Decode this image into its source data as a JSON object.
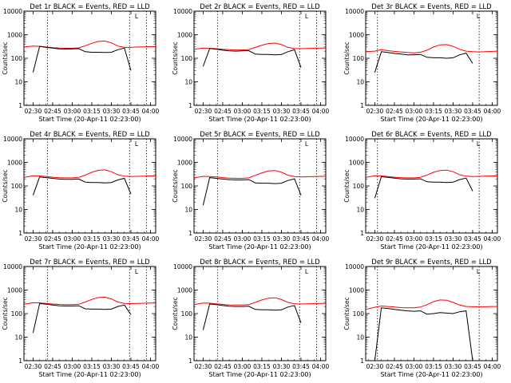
{
  "figure": {
    "ylabel": "Counts/sec",
    "xlabel": "Start Time (20-Apr-11 02:23:00)",
    "xticks": [
      "02:30",
      "02:45",
      "03:00",
      "03:15",
      "03:30",
      "03:45",
      "04:00"
    ],
    "yticks": [
      "1",
      "10",
      "100",
      "1000",
      "10000"
    ],
    "marker": "L",
    "colors": {
      "events": "#000000",
      "lld": "#ff0000",
      "axes": "#000000"
    }
  },
  "chart_data": [
    {
      "type": "line",
      "title": "Det 1r BLACK = Events, RED = LLD",
      "xlabel": "Start Time (20-Apr-11 02:23:00)",
      "ylabel": "Counts/sec",
      "yscale": "log",
      "ylim": [
        1,
        10000
      ],
      "xlim": [
        "02:23",
        "04:04"
      ],
      "vlines": [
        "02:41",
        "03:44",
        "03:57"
      ],
      "x": [
        "02:23",
        "02:30",
        "02:35",
        "02:40",
        "02:45",
        "02:50",
        "02:55",
        "03:00",
        "03:05",
        "03:10",
        "03:15",
        "03:20",
        "03:25",
        "03:30",
        "03:35",
        "03:40",
        "03:45",
        "03:50",
        "03:55",
        "04:00",
        "04:04"
      ],
      "series": [
        {
          "name": "LLD",
          "values": [
            300,
            330,
            320,
            300,
            280,
            270,
            265,
            265,
            275,
            340,
            430,
            520,
            540,
            450,
            330,
            290,
            290,
            300,
            305,
            310,
            310
          ]
        },
        {
          "name": "Events",
          "values": [
            null,
            25,
            320,
            290,
            270,
            250,
            245,
            250,
            255,
            190,
            180,
            180,
            175,
            180,
            230,
            270,
            30,
            null,
            null,
            null,
            null
          ]
        }
      ]
    },
    {
      "type": "line",
      "title": "Det 2r BLACK = Events, RED = LLD",
      "xlabel": "Start Time (20-Apr-11 02:23:00)",
      "ylabel": "Counts/sec",
      "yscale": "log",
      "ylim": [
        1,
        10000
      ],
      "xlim": [
        "02:23",
        "04:04"
      ],
      "vlines": [
        "02:41",
        "03:44",
        "03:57"
      ],
      "x": [
        "02:23",
        "02:30",
        "02:35",
        "02:40",
        "02:45",
        "02:50",
        "02:55",
        "03:00",
        "03:05",
        "03:10",
        "03:15",
        "03:20",
        "03:25",
        "03:30",
        "03:35",
        "03:40",
        "03:45",
        "03:50",
        "03:55",
        "04:00",
        "04:04"
      ],
      "series": [
        {
          "name": "LLD",
          "values": [
            240,
            270,
            265,
            255,
            240,
            230,
            225,
            225,
            235,
            290,
            360,
            420,
            440,
            380,
            290,
            260,
            255,
            260,
            265,
            270,
            270
          ]
        },
        {
          "name": "Events",
          "values": [
            null,
            45,
            260,
            240,
            220,
            205,
            200,
            205,
            210,
            150,
            145,
            145,
            140,
            145,
            190,
            230,
            40,
            null,
            null,
            null,
            null
          ]
        }
      ]
    },
    {
      "type": "line",
      "title": "Det 3r BLACK = Events, RED = LLD",
      "xlabel": "Start Time (20-Apr-11 02:23:00)",
      "ylabel": "Counts/sec",
      "yscale": "log",
      "ylim": [
        1,
        10000
      ],
      "xlim": [
        "02:23",
        "04:04"
      ],
      "vlines": [
        "02:32",
        "03:50"
      ],
      "x": [
        "02:23",
        "02:30",
        "02:35",
        "02:40",
        "02:45",
        "02:50",
        "02:55",
        "03:00",
        "03:05",
        "03:10",
        "03:15",
        "03:20",
        "03:25",
        "03:30",
        "03:35",
        "03:40",
        "03:45",
        "03:50",
        "03:55",
        "04:00",
        "04:04"
      ],
      "series": [
        {
          "name": "LLD",
          "values": [
            190,
            200,
            230,
            210,
            195,
            185,
            175,
            170,
            180,
            220,
            300,
            370,
            380,
            320,
            240,
            200,
            190,
            185,
            190,
            195,
            200
          ]
        },
        {
          "name": "Events",
          "values": [
            null,
            25,
            190,
            175,
            160,
            150,
            140,
            140,
            145,
            110,
            105,
            105,
            100,
            105,
            140,
            165,
            60,
            null,
            null,
            null,
            null
          ]
        }
      ]
    },
    {
      "type": "line",
      "title": "Det 4r BLACK = Events, RED = LLD",
      "xlabel": "Start Time (20-Apr-11 02:23:00)",
      "ylabel": "Counts/sec",
      "yscale": "log",
      "ylim": [
        1,
        10000
      ],
      "xlim": [
        "02:23",
        "04:04"
      ],
      "vlines": [
        "02:41",
        "03:44",
        "03:57"
      ],
      "x": [
        "02:23",
        "02:30",
        "02:35",
        "02:40",
        "02:45",
        "02:50",
        "02:55",
        "03:00",
        "03:05",
        "03:10",
        "03:15",
        "03:20",
        "03:25",
        "03:30",
        "03:35",
        "03:40",
        "03:45",
        "03:50",
        "03:55",
        "04:00",
        "04:04"
      ],
      "series": [
        {
          "name": "LLD",
          "values": [
            230,
            270,
            265,
            250,
            235,
            225,
            220,
            220,
            230,
            290,
            380,
            460,
            480,
            400,
            300,
            260,
            250,
            255,
            260,
            265,
            265
          ]
        },
        {
          "name": "Events",
          "values": [
            null,
            40,
            240,
            225,
            210,
            195,
            190,
            190,
            195,
            145,
            140,
            140,
            135,
            140,
            180,
            210,
            45,
            null,
            null,
            null,
            null
          ]
        }
      ]
    },
    {
      "type": "line",
      "title": "Det 5r BLACK = Events, RED = LLD",
      "xlabel": "Start Time (20-Apr-11 02:23:00)",
      "ylabel": "Counts/sec",
      "yscale": "log",
      "ylim": [
        1,
        10000
      ],
      "xlim": [
        "02:23",
        "04:04"
      ],
      "vlines": [
        "02:41",
        "03:44",
        "03:57"
      ],
      "x": [
        "02:23",
        "02:30",
        "02:35",
        "02:40",
        "02:45",
        "02:50",
        "02:55",
        "03:00",
        "03:05",
        "03:10",
        "03:15",
        "03:20",
        "03:25",
        "03:30",
        "03:35",
        "03:40",
        "03:45",
        "03:50",
        "03:55",
        "04:00",
        "04:04"
      ],
      "series": [
        {
          "name": "LLD",
          "values": [
            220,
            255,
            250,
            240,
            225,
            215,
            210,
            210,
            220,
            280,
            360,
            430,
            450,
            380,
            285,
            250,
            240,
            245,
            250,
            255,
            255
          ]
        },
        {
          "name": "Events",
          "values": [
            null,
            15,
            225,
            210,
            195,
            185,
            180,
            180,
            185,
            135,
            130,
            130,
            125,
            130,
            170,
            200,
            40,
            null,
            null,
            null,
            null
          ]
        }
      ]
    },
    {
      "type": "line",
      "title": "Det 6r BLACK = Events, RED = LLD",
      "xlabel": "Start Time (20-Apr-11 02:23:00)",
      "ylabel": "Counts/sec",
      "yscale": "log",
      "ylim": [
        1,
        10000
      ],
      "xlim": [
        "02:23",
        "04:04"
      ],
      "vlines": [
        "02:32",
        "03:50"
      ],
      "x": [
        "02:23",
        "02:30",
        "02:35",
        "02:40",
        "02:45",
        "02:50",
        "02:55",
        "03:00",
        "03:05",
        "03:10",
        "03:15",
        "03:20",
        "03:25",
        "03:30",
        "03:35",
        "03:40",
        "03:45",
        "03:50",
        "03:55",
        "04:00",
        "04:04"
      ],
      "series": [
        {
          "name": "LLD",
          "values": [
            230,
            270,
            265,
            250,
            235,
            225,
            220,
            220,
            230,
            290,
            380,
            450,
            470,
            400,
            300,
            260,
            250,
            255,
            260,
            265,
            265
          ]
        },
        {
          "name": "Events",
          "values": [
            null,
            30,
            245,
            230,
            215,
            200,
            195,
            195,
            200,
            150,
            145,
            145,
            140,
            145,
            185,
            215,
            60,
            null,
            null,
            null,
            null
          ]
        }
      ]
    },
    {
      "type": "line",
      "title": "Det 7r BLACK = Events, RED = LLD",
      "xlabel": "Start Time (20-Apr-11 02:23:00)",
      "ylabel": "Counts/sec",
      "yscale": "log",
      "ylim": [
        1,
        10000
      ],
      "xlim": [
        "02:23",
        "04:04"
      ],
      "vlines": [
        "02:41",
        "03:44",
        "03:57"
      ],
      "x": [
        "02:23",
        "02:30",
        "02:35",
        "02:40",
        "02:45",
        "02:50",
        "02:55",
        "03:00",
        "03:05",
        "03:10",
        "03:15",
        "03:20",
        "03:25",
        "03:30",
        "03:35",
        "03:40",
        "03:45",
        "03:50",
        "03:55",
        "04:00",
        "04:04"
      ],
      "series": [
        {
          "name": "LLD",
          "values": [
            250,
            290,
            285,
            270,
            255,
            245,
            240,
            240,
            250,
            310,
            400,
            480,
            500,
            420,
            310,
            270,
            265,
            270,
            275,
            280,
            280
          ]
        },
        {
          "name": "Events",
          "values": [
            null,
            15,
            265,
            250,
            230,
            215,
            210,
            210,
            215,
            160,
            155,
            155,
            150,
            155,
            200,
            230,
            90,
            null,
            null,
            null,
            null
          ]
        }
      ]
    },
    {
      "type": "line",
      "title": "Det 8r BLACK = Events, RED = LLD",
      "xlabel": "Start Time (20-Apr-11 02:23:00)",
      "ylabel": "Counts/sec",
      "yscale": "log",
      "ylim": [
        1,
        10000
      ],
      "xlim": [
        "02:23",
        "04:04"
      ],
      "vlines": [
        "02:41",
        "03:44",
        "03:57"
      ],
      "x": [
        "02:23",
        "02:30",
        "02:35",
        "02:40",
        "02:45",
        "02:50",
        "02:55",
        "03:00",
        "03:05",
        "03:10",
        "03:15",
        "03:20",
        "03:25",
        "03:30",
        "03:35",
        "03:40",
        "03:45",
        "03:50",
        "03:55",
        "04:00",
        "04:04"
      ],
      "series": [
        {
          "name": "LLD",
          "values": [
            240,
            280,
            275,
            260,
            245,
            235,
            230,
            230,
            240,
            300,
            380,
            450,
            470,
            395,
            300,
            260,
            255,
            260,
            265,
            270,
            270
          ]
        },
        {
          "name": "Events",
          "values": [
            null,
            20,
            255,
            240,
            220,
            205,
            200,
            200,
            205,
            150,
            145,
            145,
            140,
            145,
            190,
            220,
            40,
            null,
            null,
            null,
            null
          ]
        }
      ]
    },
    {
      "type": "line",
      "title": "Det 9r BLACK = Events, RED = LLD",
      "xlabel": "Start Time (20-Apr-11 02:23:00)",
      "ylabel": "Counts/sec",
      "yscale": "log",
      "ylim": [
        1,
        10000
      ],
      "xlim": [
        "02:23",
        "04:04"
      ],
      "vlines": [
        "02:32",
        "03:50"
      ],
      "x": [
        "02:23",
        "02:30",
        "02:35",
        "02:40",
        "02:45",
        "02:50",
        "02:55",
        "03:00",
        "03:05",
        "03:10",
        "03:15",
        "03:20",
        "03:25",
        "03:30",
        "03:35",
        "03:40",
        "03:45",
        "03:50",
        "03:55",
        "04:00",
        "04:04"
      ],
      "series": [
        {
          "name": "LLD",
          "values": [
            150,
            185,
            210,
            200,
            190,
            180,
            175,
            175,
            190,
            240,
            320,
            380,
            370,
            300,
            230,
            200,
            195,
            195,
            195,
            200,
            200
          ]
        },
        {
          "name": "Events",
          "values": [
            null,
            1,
            175,
            165,
            150,
            140,
            130,
            125,
            130,
            95,
            100,
            110,
            105,
            100,
            120,
            130,
            1,
            null,
            null,
            null,
            null
          ]
        }
      ]
    }
  ]
}
